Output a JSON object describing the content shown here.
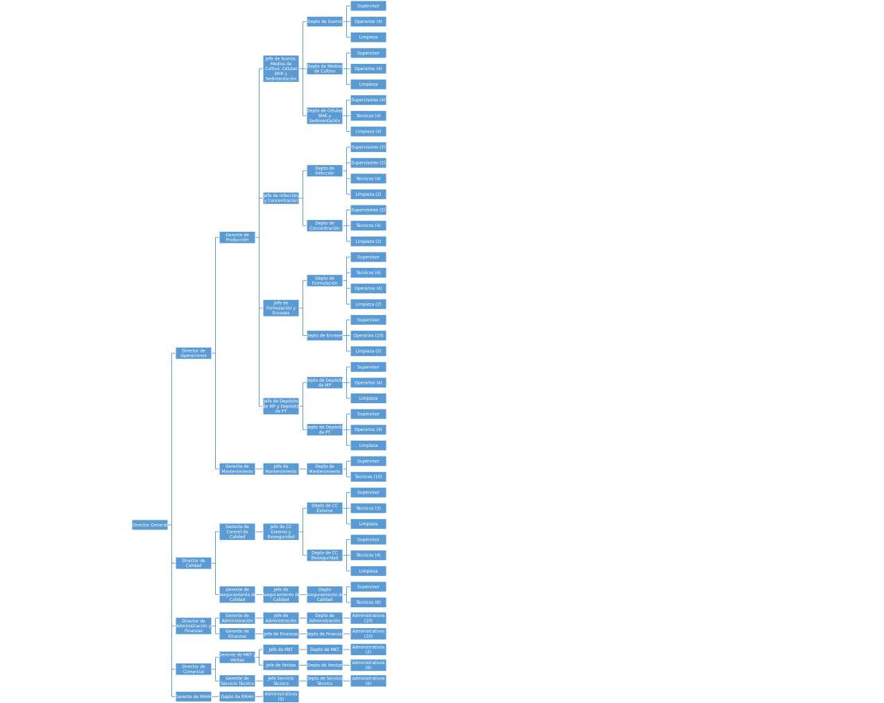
{
  "accent_color": "#5b9bd5",
  "connector_color": "#5b9bd5",
  "text_color": "#ffffff",
  "tree": {
    "label": "Director General",
    "children": [
      {
        "label": "Director de Operaciones",
        "children": [
          {
            "label": "Gerente de Producción",
            "children": [
              {
                "label": "Jefe de Sueros, Medios de Cultivo, Células BHK y Sedimentación",
                "children": [
                  {
                    "label": "Depto de Sueros",
                    "children": [
                      {
                        "label": "Supervisor"
                      },
                      {
                        "label": "Operarios (4)"
                      },
                      {
                        "label": "Limpieza"
                      }
                    ]
                  },
                  {
                    "label": "Depto de Medios de Cultivo",
                    "children": [
                      {
                        "label": "Supervisor"
                      },
                      {
                        "label": "Operarios (4)"
                      },
                      {
                        "label": "Limpieza"
                      }
                    ]
                  },
                  {
                    "label": "Depto de Células BHK y Sedimentación",
                    "children": [
                      {
                        "label": "Supervisores (4)"
                      },
                      {
                        "label": "Técnicos (4)"
                      },
                      {
                        "label": "Limpieza (4)"
                      }
                    ]
                  }
                ]
              },
              {
                "label": "Jefe de Infección y Concentración",
                "children": [
                  {
                    "label": "Depto de Infección",
                    "children": [
                      {
                        "label": "Supervisores (2)"
                      },
                      {
                        "label": "Supervisores (2)"
                      },
                      {
                        "label": "Técnicos (4)"
                      },
                      {
                        "label": "Limpieza (2)"
                      }
                    ]
                  },
                  {
                    "label": "Depto de Concentración",
                    "children": [
                      {
                        "label": "Supervisores (2)"
                      },
                      {
                        "label": "Técnicos (4)"
                      },
                      {
                        "label": "Limpieza (2)"
                      }
                    ]
                  }
                ]
              },
              {
                "label": "Jefe de Formulación y Envases",
                "children": [
                  {
                    "label": "Depto de Formulación",
                    "children": [
                      {
                        "label": "Supervisor"
                      },
                      {
                        "label": "Técnicos (4)"
                      },
                      {
                        "label": "Operarios (4)"
                      },
                      {
                        "label": "Limpieza (2)"
                      }
                    ]
                  },
                  {
                    "label": "Depto de Envases",
                    "children": [
                      {
                        "label": "Supervisor"
                      },
                      {
                        "label": "Operarios (10)"
                      },
                      {
                        "label": "Limpieza (2)"
                      }
                    ]
                  }
                ]
              },
              {
                "label": "Jefe de Depósito de MP y Depósito de PT",
                "children": [
                  {
                    "label": "Depto de Depósito de MP",
                    "children": [
                      {
                        "label": "Supervisor"
                      },
                      {
                        "label": "Operarios (4)"
                      },
                      {
                        "label": "Limpieza"
                      }
                    ]
                  },
                  {
                    "label": "Depto de Depósito de PT",
                    "children": [
                      {
                        "label": "Supervisor"
                      },
                      {
                        "label": "Operarios (4)"
                      },
                      {
                        "label": "Limpieza"
                      }
                    ]
                  }
                ]
              }
            ]
          },
          {
            "label": "Gerente de Mantenimiento",
            "children": [
              {
                "label": "Jefe de Mantenimiento",
                "children": [
                  {
                    "label": "Depto de Mantenimiento",
                    "children": [
                      {
                        "label": "Supervisor"
                      },
                      {
                        "label": "Técnicos (10)"
                      }
                    ]
                  }
                ]
              }
            ]
          }
        ]
      },
      {
        "label": "Director de Calidad",
        "children": [
          {
            "label": "Gerente de Control de Calidad",
            "children": [
              {
                "label": "Jefe de CC Externo y Bioseguridad",
                "children": [
                  {
                    "label": "Depto de CC Externo",
                    "children": [
                      {
                        "label": "Supervisor"
                      },
                      {
                        "label": "Técnicos (3)"
                      },
                      {
                        "label": "Limpieza"
                      }
                    ]
                  },
                  {
                    "label": "Depto de CC Bioseguridad",
                    "children": [
                      {
                        "label": "Supervisor"
                      },
                      {
                        "label": "Técnicos (4)"
                      },
                      {
                        "label": "Limpieza"
                      }
                    ]
                  }
                ]
              }
            ]
          },
          {
            "label": "Gerente de Aseguramiento de Calidad",
            "children": [
              {
                "label": "Jefe de Aseguramiento de Calidad",
                "children": [
                  {
                    "label": "Depto Aseguramiento de Calidad",
                    "children": [
                      {
                        "label": "Supervisor"
                      },
                      {
                        "label": "Técnicos (6)"
                      }
                    ]
                  }
                ]
              }
            ]
          }
        ]
      },
      {
        "label": "Director de Administración y Finanzas",
        "children": [
          {
            "label": "Gerente de Administración",
            "children": [
              {
                "label": "Jefe de Administración",
                "children": [
                  {
                    "label": "Depto de Administración",
                    "children": [
                      {
                        "label": "Administrativos (10)"
                      }
                    ]
                  }
                ]
              }
            ]
          },
          {
            "label": "Gerente de Finanzas",
            "children": [
              {
                "label": "Jefe de Finanzas",
                "children": [
                  {
                    "label": "Depto de Finanzas",
                    "children": [
                      {
                        "label": "Administrativos (10)"
                      }
                    ]
                  }
                ]
              }
            ]
          }
        ]
      },
      {
        "label": "Director de Comercial",
        "children": [
          {
            "label": "Gerente de MKT y Ventas",
            "children": [
              {
                "label": "Jefe de MKT",
                "children": [
                  {
                    "label": "Depto de MKT",
                    "children": [
                      {
                        "label": "Administrativos (2)"
                      }
                    ]
                  }
                ]
              },
              {
                "label": "Jefe de Ventas",
                "children": [
                  {
                    "label": "Depto de Ventas",
                    "children": [
                      {
                        "label": "Administrativos (6)"
                      }
                    ]
                  }
                ]
              }
            ]
          },
          {
            "label": "Gerente de Servicio Técnico",
            "children": [
              {
                "label": "Jefe Servicio Técnico",
                "children": [
                  {
                    "label": "Depto de Servicio Técnico",
                    "children": [
                      {
                        "label": "Administrativos (6)"
                      }
                    ]
                  }
                ]
              }
            ]
          }
        ]
      },
      {
        "label": "Gerente de RRHH",
        "children": [
          {
            "label": "Depto de RRHH",
            "children": [
              {
                "label": "Administrativos (5)"
              }
            ]
          }
        ]
      }
    ]
  }
}
